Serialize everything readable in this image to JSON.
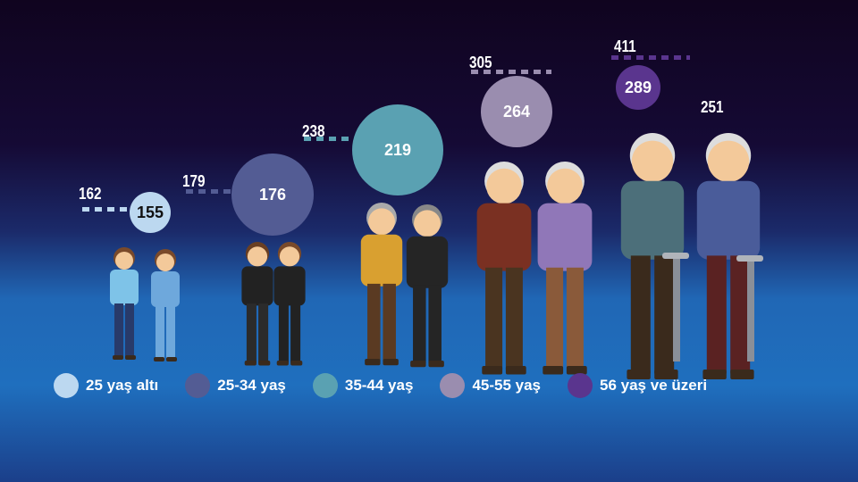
{
  "chart_data": {
    "type": "bubble-infographic",
    "categories": [
      "25 yaş altı",
      "25-34 yaş",
      "35-44 yaş",
      "45-55 yaş",
      "56 yaş ve üzeri"
    ],
    "colors": [
      "#bcd8f0",
      "#535c94",
      "#5aa1b2",
      "#9a8daf",
      "#5a358e"
    ],
    "dotted_values": [
      162,
      179,
      238,
      305,
      411
    ],
    "bubble_values": [
      155,
      176,
      219,
      264,
      289
    ],
    "extra_label": "251"
  },
  "legend": [
    "25 yaş altı",
    "25-34 yaş",
    "35-44 yaş",
    "45-55 yaş",
    "56 yaş ve üzeri"
  ]
}
